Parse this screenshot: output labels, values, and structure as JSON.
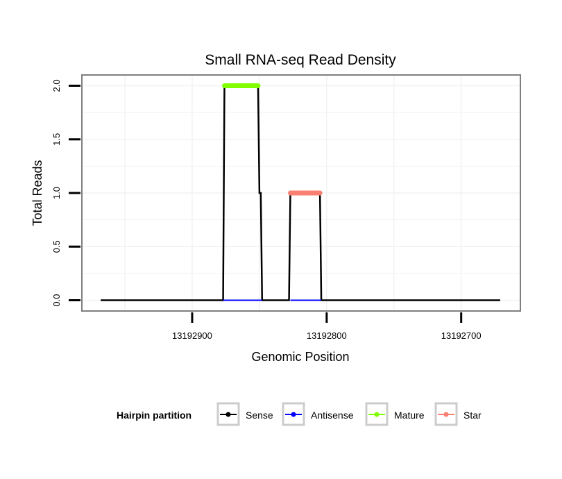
{
  "chart_data": {
    "type": "line",
    "title": "Small RNA-seq Read Density",
    "xlabel": "Genomic Position",
    "ylabel": "Total Reads",
    "xlim": [
      13192982,
      13192656
    ],
    "x_reversed": true,
    "ylim": [
      -0.1,
      2.1
    ],
    "xticks": [
      13192900,
      13192800,
      13192700
    ],
    "xtick_labels": [
      "13192900",
      "13192800",
      "13192700"
    ],
    "yticks": [
      0,
      0.5,
      1,
      1.5,
      2
    ],
    "ytick_labels": [
      "0.0",
      "0.5",
      "1.0",
      "1.5",
      "2.0"
    ],
    "grid": true,
    "legend": {
      "title": "Hairpin partition",
      "position": "bottom"
    },
    "series": [
      {
        "name": "Sense",
        "color": "#000000",
        "points": [
          [
            13192968,
            0
          ],
          [
            13192877,
            0
          ],
          [
            13192876,
            2
          ],
          [
            13192851,
            2
          ],
          [
            13192850,
            1
          ],
          [
            13192849,
            1
          ],
          [
            13192848,
            0
          ],
          [
            13192828,
            0
          ],
          [
            13192827,
            1
          ],
          [
            13192805,
            1
          ],
          [
            13192804,
            0
          ],
          [
            13192671,
            0
          ]
        ]
      },
      {
        "name": "Antisense",
        "color": "#0000ff",
        "segments": [
          [
            [
              13192877,
              0
            ],
            [
              13192848,
              0
            ]
          ],
          [
            [
              13192827,
              0
            ],
            [
              13192804,
              0
            ]
          ]
        ]
      },
      {
        "name": "Mature",
        "color": "#7fff00",
        "segments": [
          [
            [
              13192876,
              2
            ],
            [
              13192851,
              2
            ]
          ]
        ]
      },
      {
        "name": "Star",
        "color": "#fa8072",
        "segments": [
          [
            [
              13192827,
              1
            ],
            [
              13192805,
              1
            ]
          ]
        ]
      }
    ]
  }
}
